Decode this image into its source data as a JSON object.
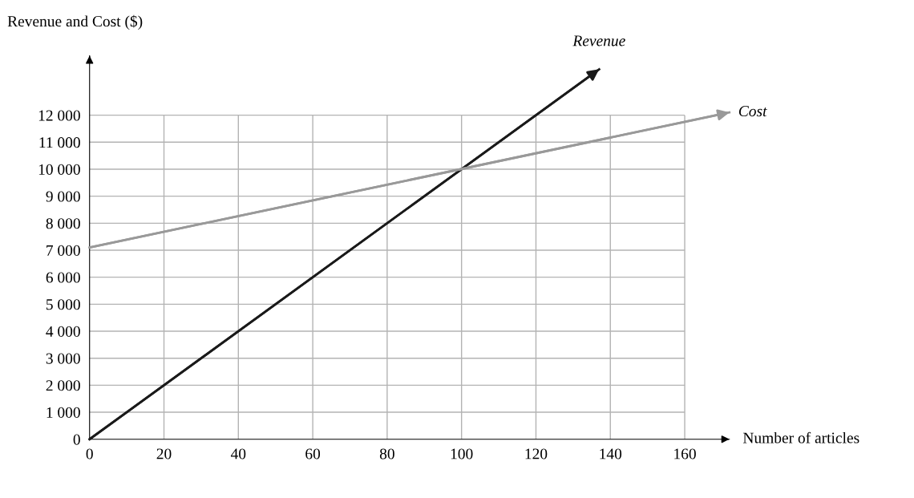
{
  "chart_data": {
    "type": "line",
    "xlabel": "Number of articles",
    "ylabel": "Revenue and Cost ($)",
    "series": [
      {
        "name": "Revenue",
        "color": "#1a1a1a",
        "x": [
          0,
          137
        ],
        "values": [
          0,
          13700
        ]
      },
      {
        "name": "Cost",
        "color": "#999999",
        "x": [
          0,
          172
        ],
        "values": [
          7100,
          12100
        ]
      }
    ],
    "xlim": [
      0,
      172
    ],
    "ylim": [
      0,
      14200
    ],
    "xticks": [
      0,
      20,
      40,
      60,
      80,
      100,
      120,
      140,
      160
    ],
    "yticks": [
      0,
      {
        "value": 1000,
        "label": "1 000"
      },
      {
        "value": 2000,
        "label": "2 000"
      },
      {
        "value": 3000,
        "label": "3 000"
      },
      {
        "value": 4000,
        "label": "4 000"
      },
      {
        "value": 5000,
        "label": "5 000"
      },
      {
        "value": 6000,
        "label": "6 000"
      },
      {
        "value": 7000,
        "label": "7 000"
      },
      {
        "value": 8000,
        "label": "8 000"
      },
      {
        "value": 9000,
        "label": "9 000"
      },
      {
        "value": 10000,
        "label": "10 000"
      },
      {
        "value": 11000,
        "label": "11 000"
      },
      {
        "value": 12000,
        "label": "12 000"
      }
    ],
    "grid": true,
    "marker": "none",
    "line_style": "solid"
  }
}
